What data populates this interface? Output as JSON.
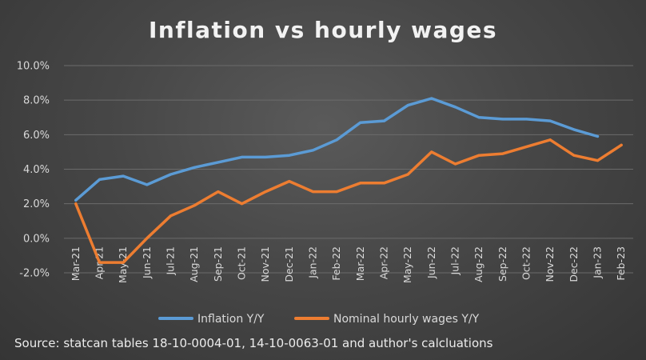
{
  "chart_data": {
    "type": "line",
    "title": "Inflation vs hourly wages",
    "source": "Source: statcan tables 18-10-0004-01, 14-10-0063-01 and author's calcluations",
    "categories": [
      "Mar-21",
      "Apr-21",
      "May-21",
      "Jun-21",
      "Jul-21",
      "Aug-21",
      "Sep-21",
      "Oct-21",
      "Nov-21",
      "Dec-21",
      "Jan-22",
      "Feb-22",
      "Mar-22",
      "Apr-22",
      "May-22",
      "Jun-22",
      "Jul-22",
      "Aug-22",
      "Sep-22",
      "Oct-22",
      "Nov-22",
      "Dec-22",
      "Jan-23",
      "Feb-23"
    ],
    "series": [
      {
        "name": "Inflation Y/Y",
        "color": "#5b9bd5",
        "values": [
          2.2,
          3.4,
          3.6,
          3.1,
          3.7,
          4.1,
          4.4,
          4.7,
          4.7,
          4.8,
          5.1,
          5.7,
          6.7,
          6.8,
          7.7,
          8.1,
          7.6,
          7.0,
          6.9,
          6.9,
          6.8,
          6.3,
          5.9,
          null
        ]
      },
      {
        "name": "Nominal hourly wages Y/Y",
        "color": "#ed7d31",
        "values": [
          2.0,
          -1.4,
          -1.4,
          0.0,
          1.3,
          1.9,
          2.7,
          2.0,
          2.7,
          3.3,
          2.7,
          2.7,
          3.2,
          3.2,
          3.7,
          5.0,
          4.3,
          4.8,
          4.9,
          5.3,
          5.7,
          4.8,
          4.5,
          5.4
        ]
      }
    ],
    "ylim": [
      -2,
      10
    ],
    "yticks": [
      "-2.0%",
      "0.0%",
      "2.0%",
      "4.0%",
      "6.0%",
      "8.0%",
      "10.0%"
    ],
    "ytick_values": [
      -2,
      0,
      2,
      4,
      6,
      8,
      10
    ],
    "grid": true,
    "legend_position": "bottom"
  }
}
